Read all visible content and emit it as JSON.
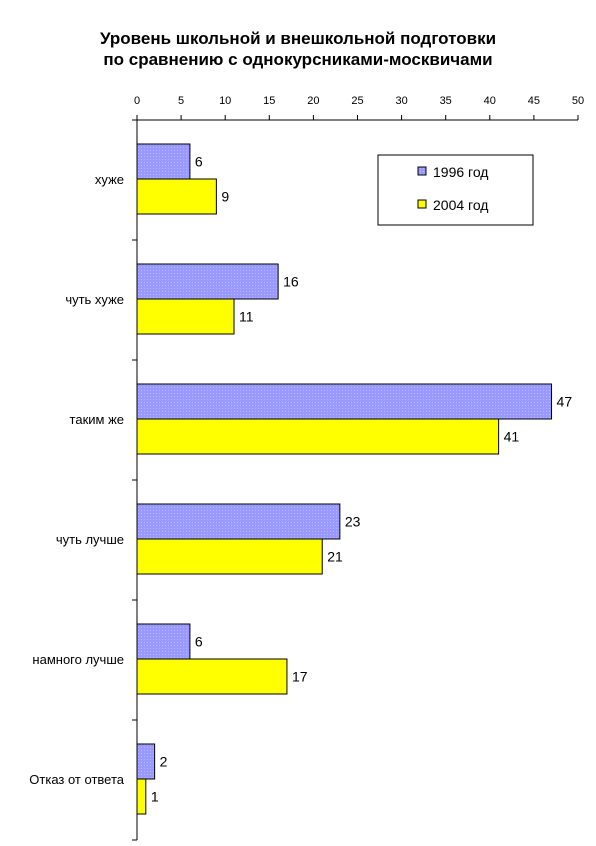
{
  "chart_data": {
    "type": "bar",
    "orientation": "horizontal",
    "title_lines": [
      "Уровень школьной и внешкольной подготовки",
      "по сравнению с однокурсниками-москвичами"
    ],
    "categories": [
      "хуже",
      "чуть хуже",
      "таким же",
      "чуть лучше",
      "намного лучше",
      "Отказ от ответа"
    ],
    "series": [
      {
        "name": "1996 год",
        "color": "#9999ff",
        "values": [
          6,
          16,
          47,
          23,
          6,
          2
        ]
      },
      {
        "name": "2004 год",
        "color": "#ffff00",
        "values": [
          9,
          11,
          41,
          21,
          17,
          1
        ]
      }
    ],
    "xlim": [
      0,
      50
    ],
    "x_ticks": [
      0,
      5,
      10,
      15,
      20,
      25,
      30,
      35,
      40,
      45,
      50
    ],
    "x_axis_position": "top",
    "grid": false,
    "legend_position": "top-right",
    "data_labels": true
  }
}
